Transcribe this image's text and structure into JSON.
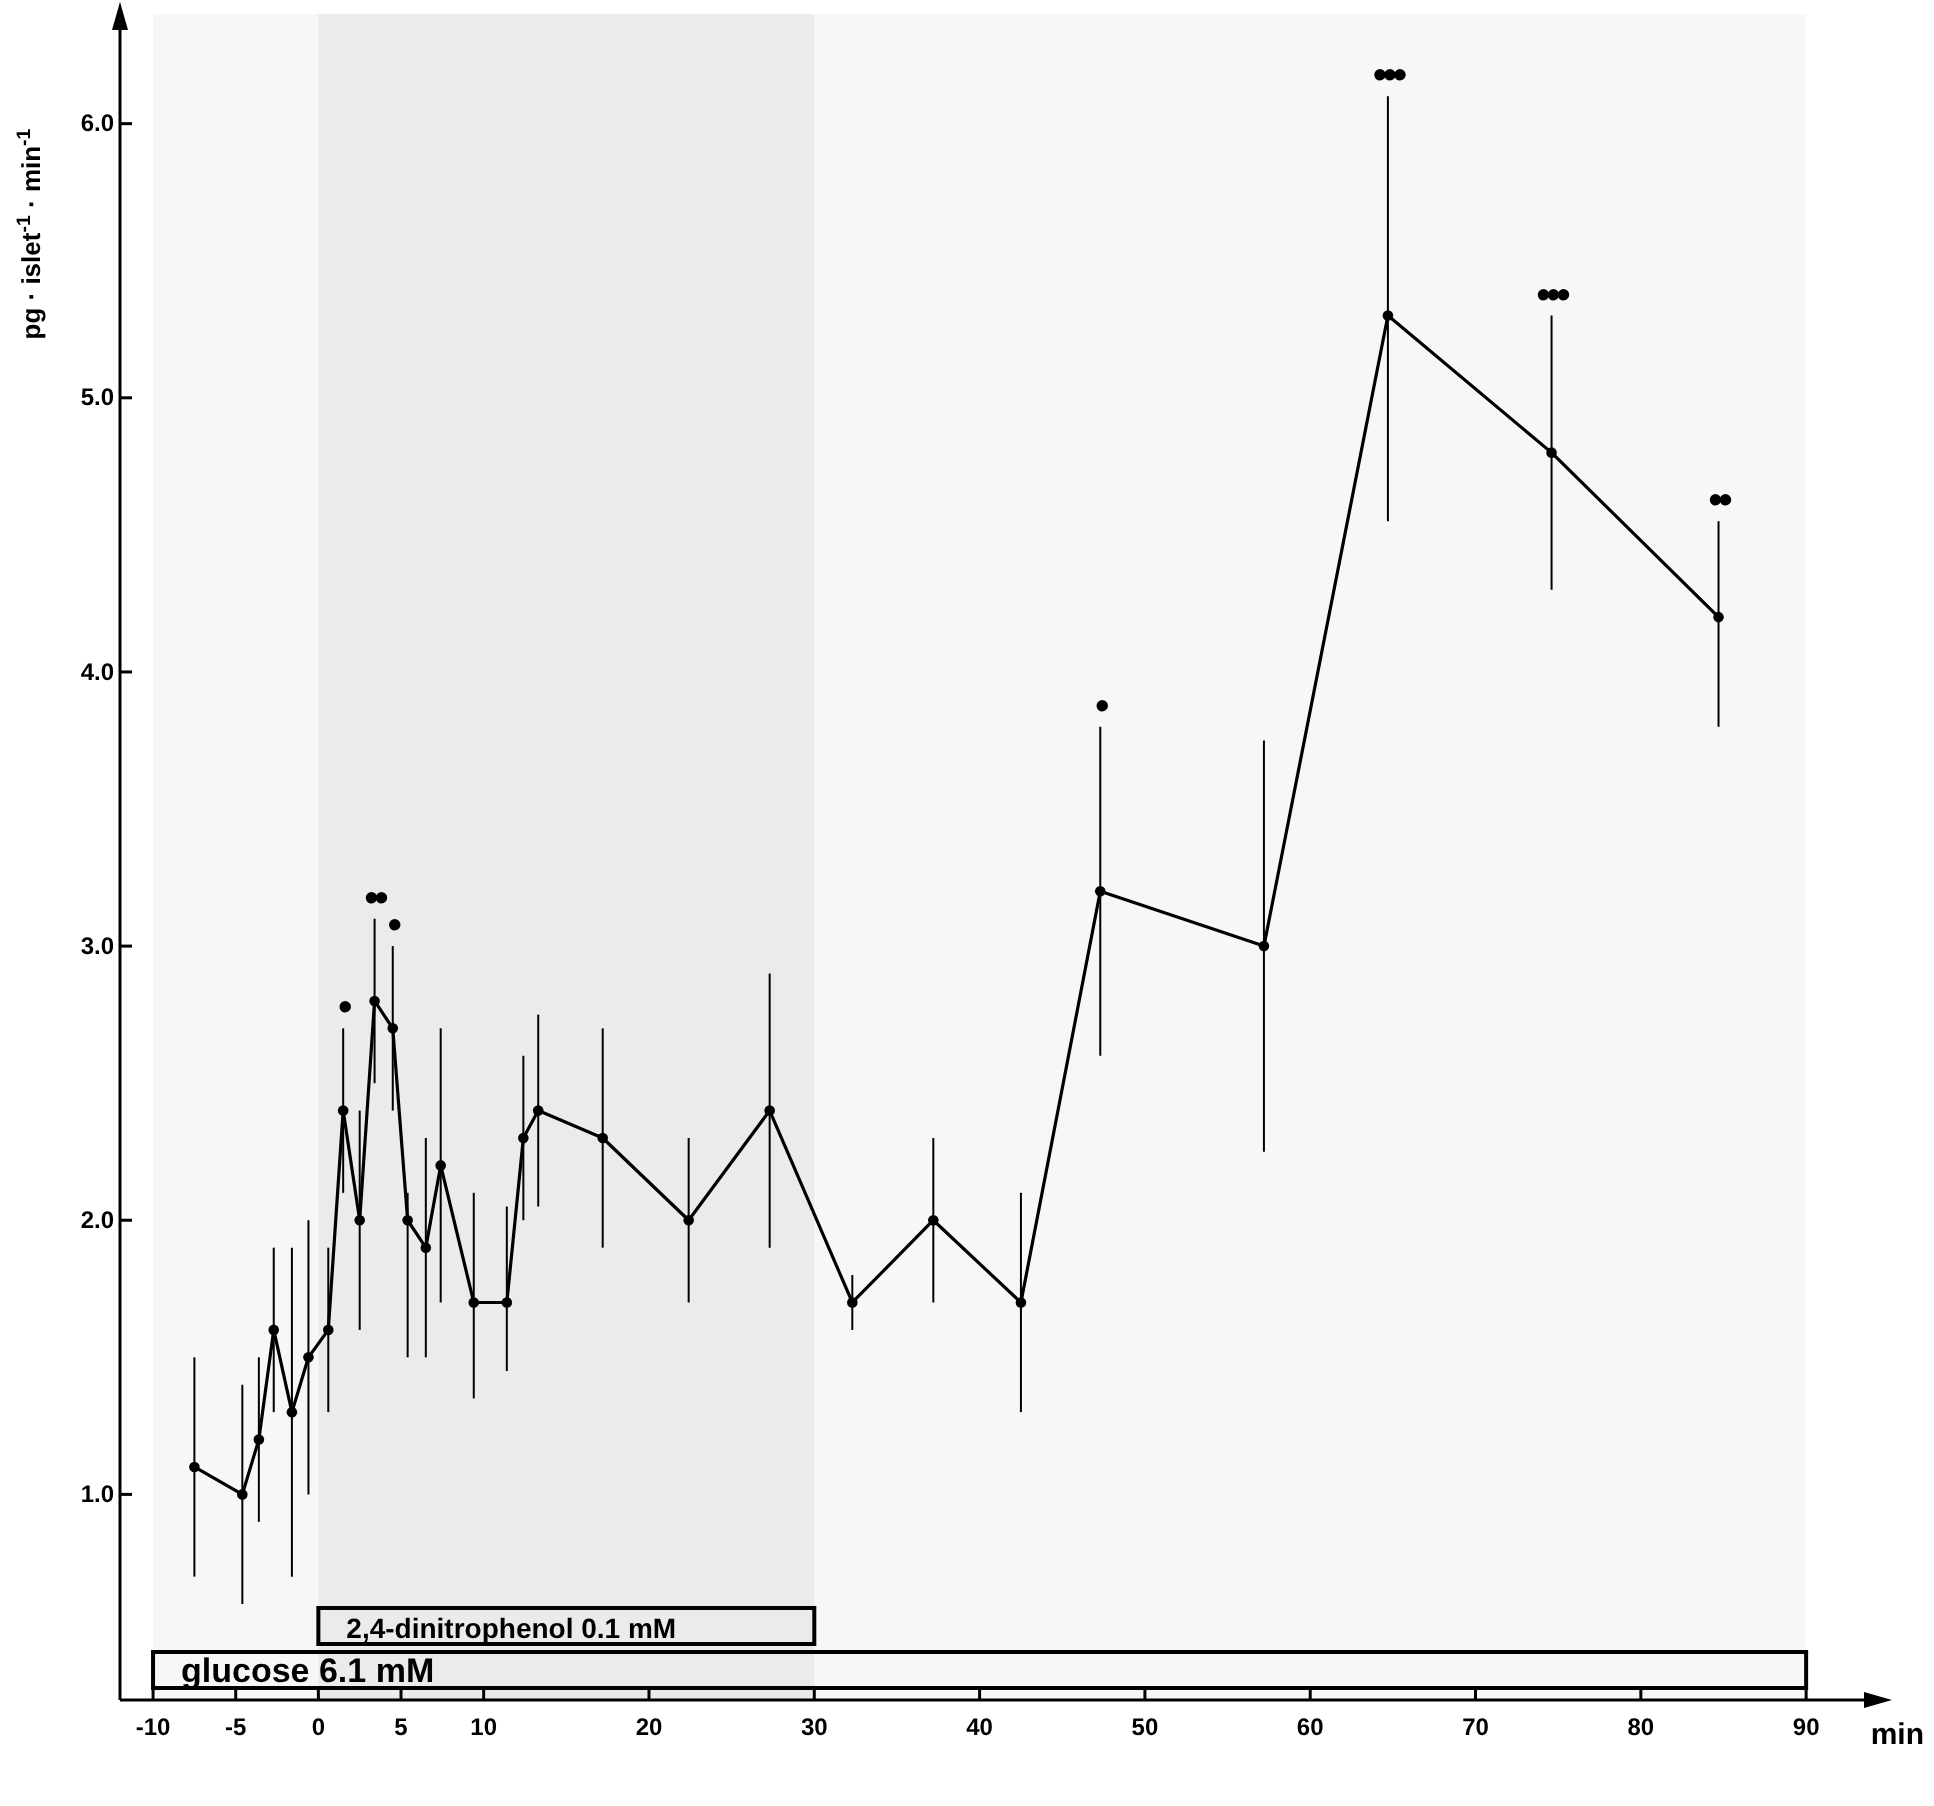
{
  "chart_data": {
    "type": "line",
    "xlabel": "min",
    "ylabel": "pg · islet$^{-1}$ · min$^{-1}$",
    "xlim": [
      -12,
      93.5
    ],
    "ylim": [
      0.25,
      6.4
    ],
    "xticks": [
      -10,
      -5,
      0,
      5,
      10,
      20,
      30,
      40,
      50,
      60,
      70,
      80,
      90
    ],
    "yticks": [
      {
        "value": 1,
        "label": "1.0"
      },
      {
        "value": 2,
        "label": "2.0"
      },
      {
        "value": 3,
        "label": "3.0"
      },
      {
        "value": 4,
        "label": "4.0"
      },
      {
        "value": 5,
        "label": "5.0"
      },
      {
        "value": 6,
        "label": "6.0"
      }
    ],
    "grid": false,
    "marker": "circle",
    "line_style": "solid",
    "series": [
      {
        "color": "#000000",
        "x": [
          -7.5,
          -4.6,
          -3.6,
          -2.7,
          -1.6,
          -0.6,
          0.6,
          1.5,
          2.5,
          3.4,
          4.5,
          5.4,
          6.5,
          7.4,
          9.4,
          11.4,
          12.4,
          13.3,
          17.2,
          22.4,
          27.3,
          32.3,
          37.2,
          42.5,
          47.3,
          57.2,
          64.7,
          74.6,
          84.7
        ],
        "values": [
          1.1,
          1.0,
          1.2,
          1.6,
          1.3,
          1.5,
          1.6,
          2.4,
          2.0,
          2.8,
          2.7,
          2.0,
          1.9,
          2.2,
          1.7,
          1.7,
          2.3,
          2.4,
          2.3,
          2.0,
          2.4,
          1.7,
          2.0,
          1.7,
          3.2,
          3.0,
          5.3,
          4.8,
          4.2
        ],
        "errors": [
          [
            0.7,
            1.5
          ],
          [
            0.6,
            1.4
          ],
          [
            0.9,
            1.5
          ],
          [
            1.3,
            1.9
          ],
          [
            0.7,
            1.9
          ],
          [
            1.0,
            2.0
          ],
          [
            1.3,
            1.9
          ],
          [
            2.1,
            2.7
          ],
          [
            1.6,
            2.4
          ],
          [
            2.5,
            3.1
          ],
          [
            2.4,
            3.0
          ],
          [
            1.5,
            2.1
          ],
          [
            1.5,
            2.3
          ],
          [
            1.7,
            2.7
          ],
          [
            1.35,
            2.1
          ],
          [
            1.45,
            2.05
          ],
          [
            2.0,
            2.6
          ],
          [
            2.05,
            2.75
          ],
          [
            1.9,
            2.7
          ],
          [
            1.7,
            2.3
          ],
          [
            1.9,
            2.9
          ],
          [
            1.6,
            1.8
          ],
          [
            1.7,
            2.3
          ],
          [
            1.3,
            2.1
          ],
          [
            2.6,
            3.8
          ],
          [
            2.25,
            3.75
          ],
          [
            4.55,
            6.1
          ],
          [
            4.3,
            5.3
          ],
          [
            3.8,
            4.55
          ]
        ]
      }
    ],
    "annotations": [
      {
        "text": "•",
        "x": 1.5,
        "y": 2.7
      },
      {
        "text": "••",
        "x": 3.4,
        "y": 3.1
      },
      {
        "text": "•",
        "x": 4.5,
        "y": 3.0
      },
      {
        "text": "•",
        "x": 47.3,
        "y": 3.8
      },
      {
        "text": "•••",
        "x": 64.7,
        "y": 6.1
      },
      {
        "text": "•••",
        "x": 74.6,
        "y": 5.3
      },
      {
        "text": "••",
        "x": 84.7,
        "y": 4.55
      }
    ],
    "bands": [
      {
        "axis": "x",
        "from": 0,
        "to": 30,
        "label": "2,4-dinitrophenol 0.1 mM",
        "color": "#ebebeb"
      },
      {
        "axis": "x",
        "from": -10,
        "to": 90,
        "label": "glucose 6.1 mM",
        "color": "#f7f7f7"
      }
    ]
  }
}
